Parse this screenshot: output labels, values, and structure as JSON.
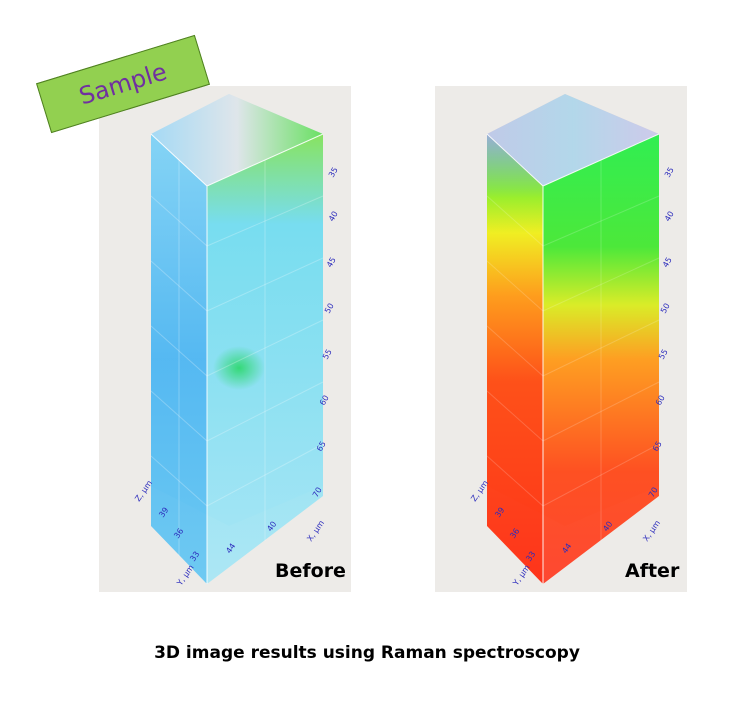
{
  "badge": {
    "text": "Sample"
  },
  "panels": [
    {
      "id": "before",
      "label": "Before",
      "x_axis": {
        "label": "X, μm",
        "ticks": [
          "44",
          "40"
        ]
      },
      "y_axis": {
        "label": "Y, μm",
        "ticks": [
          "33"
        ]
      },
      "z_axis": {
        "label": "Z, μm",
        "ticks": [
          "39",
          "36"
        ]
      },
      "depth_ticks": [
        "35",
        "40",
        "45",
        "50",
        "55",
        "60",
        "65",
        "70"
      ]
    },
    {
      "id": "after",
      "label": "After",
      "x_axis": {
        "label": "X, μm",
        "ticks": [
          "44",
          "40"
        ]
      },
      "y_axis": {
        "label": "Y, μm",
        "ticks": [
          "33"
        ]
      },
      "z_axis": {
        "label": "Z, μm",
        "ticks": [
          "39",
          "36"
        ]
      },
      "depth_ticks": [
        "35",
        "40",
        "45",
        "50",
        "55",
        "60",
        "65",
        "70"
      ]
    }
  ],
  "caption": "3D image results using Raman spectroscopy",
  "colors": {
    "before_main": "#3fb8f0",
    "after_bottom": "#ff2a10",
    "after_top": "#22ee33",
    "mid_yellow": "#f2f21a"
  }
}
